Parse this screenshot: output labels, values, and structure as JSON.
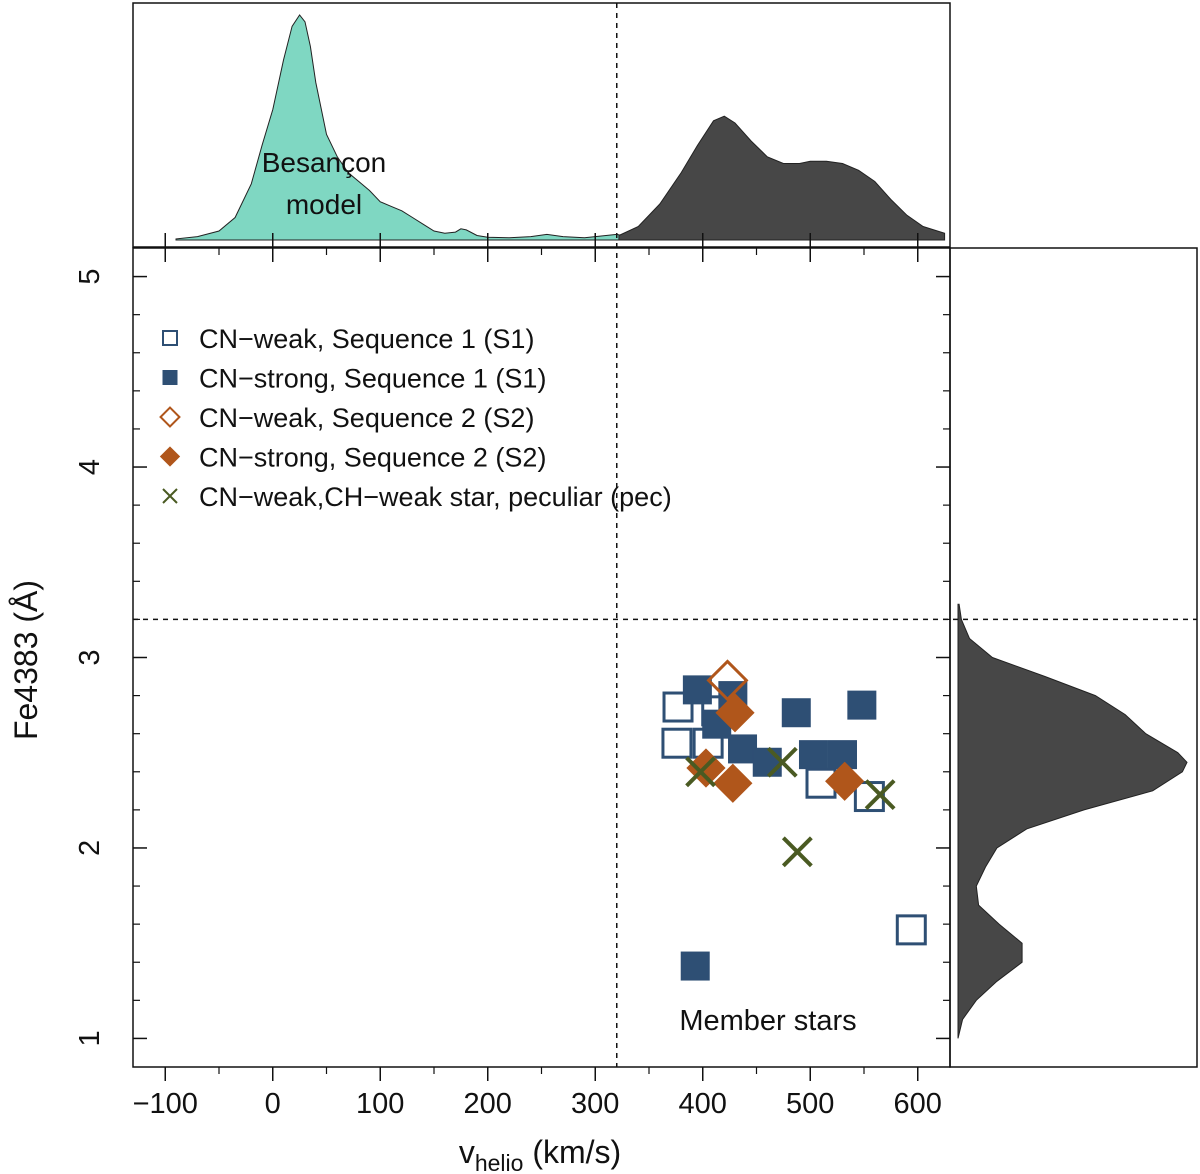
{
  "chart_data": {
    "type": "scatter",
    "xlabel_main": "v",
    "xlabel_sub": "helio",
    "xlabel_unit": " (km/s)",
    "ylabel": "Fe4383 (Å)",
    "xlim": [
      -130,
      630
    ],
    "ylim": [
      0.85,
      5.15
    ],
    "x_ticks": [
      -100,
      0,
      100,
      200,
      300,
      400,
      500,
      600
    ],
    "y_ticks": [
      1,
      2,
      3,
      4,
      5
    ],
    "x_cut": 320,
    "y_cut": 3.2,
    "annotations": {
      "besancon_line1": "Besançon",
      "besancon_line2": "model",
      "members": "Member stars"
    },
    "colors": {
      "s1": "#2e4f74",
      "s2": "#b0561b",
      "pec": "#4a5a22",
      "besancon_fill": "#7fd7c2",
      "member_fill": "#474747"
    },
    "series": [
      {
        "name": "CN−weak, Sequence 1 (S1)",
        "marker": "open-square",
        "color": "#2e4f74",
        "points": [
          [
            377,
            2.74
          ],
          [
            376,
            2.55
          ],
          [
            405,
            2.55
          ],
          [
            413,
            2.72
          ],
          [
            510,
            2.34
          ],
          [
            555,
            2.27
          ],
          [
            594,
            1.57
          ]
        ]
      },
      {
        "name": "CN−strong, Sequence 1 (S1)",
        "marker": "filled-square",
        "color": "#2e4f74",
        "points": [
          [
            395,
            2.83
          ],
          [
            428,
            2.8
          ],
          [
            413,
            2.65
          ],
          [
            437,
            2.52
          ],
          [
            460,
            2.45
          ],
          [
            487,
            2.71
          ],
          [
            503,
            2.49
          ],
          [
            530,
            2.49
          ],
          [
            548,
            2.75
          ],
          [
            393,
            1.38
          ]
        ]
      },
      {
        "name": "CN−weak, Sequence 2 (S2)",
        "marker": "open-diamond",
        "color": "#b0561b",
        "points": [
          [
            423,
            2.88
          ]
        ]
      },
      {
        "name": "CN−strong, Sequence 2 (S2)",
        "marker": "filled-diamond",
        "color": "#b0561b",
        "points": [
          [
            430,
            2.71
          ],
          [
            403,
            2.42
          ],
          [
            428,
            2.34
          ],
          [
            532,
            2.35
          ]
        ]
      },
      {
        "name": "CN−weak,CH−weak star, peculiar (pec)",
        "marker": "cross",
        "color": "#4a5a22",
        "points": [
          [
            398,
            2.4
          ],
          [
            474,
            2.45
          ],
          [
            565,
            2.28
          ],
          [
            488,
            1.98
          ]
        ]
      }
    ],
    "density_top": {
      "besancon": {
        "x": [
          -90,
          -70,
          -50,
          -35,
          -20,
          -10,
          0,
          10,
          18,
          25,
          30,
          35,
          40,
          50,
          60,
          70,
          80,
          90,
          100,
          110,
          120,
          130,
          140,
          150,
          160,
          170,
          175,
          180,
          190,
          200,
          220,
          240,
          255,
          270,
          290,
          310,
          320,
          330,
          340
        ],
        "y": [
          0.005,
          0.015,
          0.04,
          0.1,
          0.25,
          0.42,
          0.58,
          0.8,
          0.95,
          1.0,
          0.97,
          0.86,
          0.7,
          0.47,
          0.37,
          0.3,
          0.26,
          0.22,
          0.17,
          0.15,
          0.13,
          0.1,
          0.07,
          0.04,
          0.03,
          0.035,
          0.05,
          0.045,
          0.02,
          0.012,
          0.01,
          0.015,
          0.025,
          0.015,
          0.01,
          0.02,
          0.025,
          0.015,
          0.01
        ]
      },
      "members": {
        "x": [
          322,
          340,
          360,
          380,
          395,
          410,
          420,
          430,
          445,
          460,
          475,
          490,
          500,
          515,
          530,
          545,
          560,
          575,
          590,
          605,
          625
        ],
        "y": [
          0.02,
          0.06,
          0.16,
          0.3,
          0.42,
          0.53,
          0.55,
          0.52,
          0.44,
          0.37,
          0.34,
          0.34,
          0.35,
          0.35,
          0.34,
          0.31,
          0.26,
          0.18,
          0.11,
          0.06,
          0.03
        ]
      }
    },
    "density_right": {
      "members": {
        "y": [
          1.0,
          1.1,
          1.2,
          1.3,
          1.4,
          1.5,
          1.6,
          1.7,
          1.8,
          1.9,
          2.0,
          2.1,
          2.2,
          2.3,
          2.4,
          2.45,
          2.5,
          2.6,
          2.7,
          2.8,
          2.9,
          3.0,
          3.1,
          3.2,
          3.28
        ],
        "x": [
          0.0,
          0.02,
          0.08,
          0.17,
          0.28,
          0.28,
          0.18,
          0.09,
          0.08,
          0.12,
          0.17,
          0.3,
          0.55,
          0.85,
          0.98,
          1.0,
          0.96,
          0.82,
          0.73,
          0.6,
          0.38,
          0.15,
          0.05,
          0.015,
          0.005
        ]
      }
    }
  }
}
